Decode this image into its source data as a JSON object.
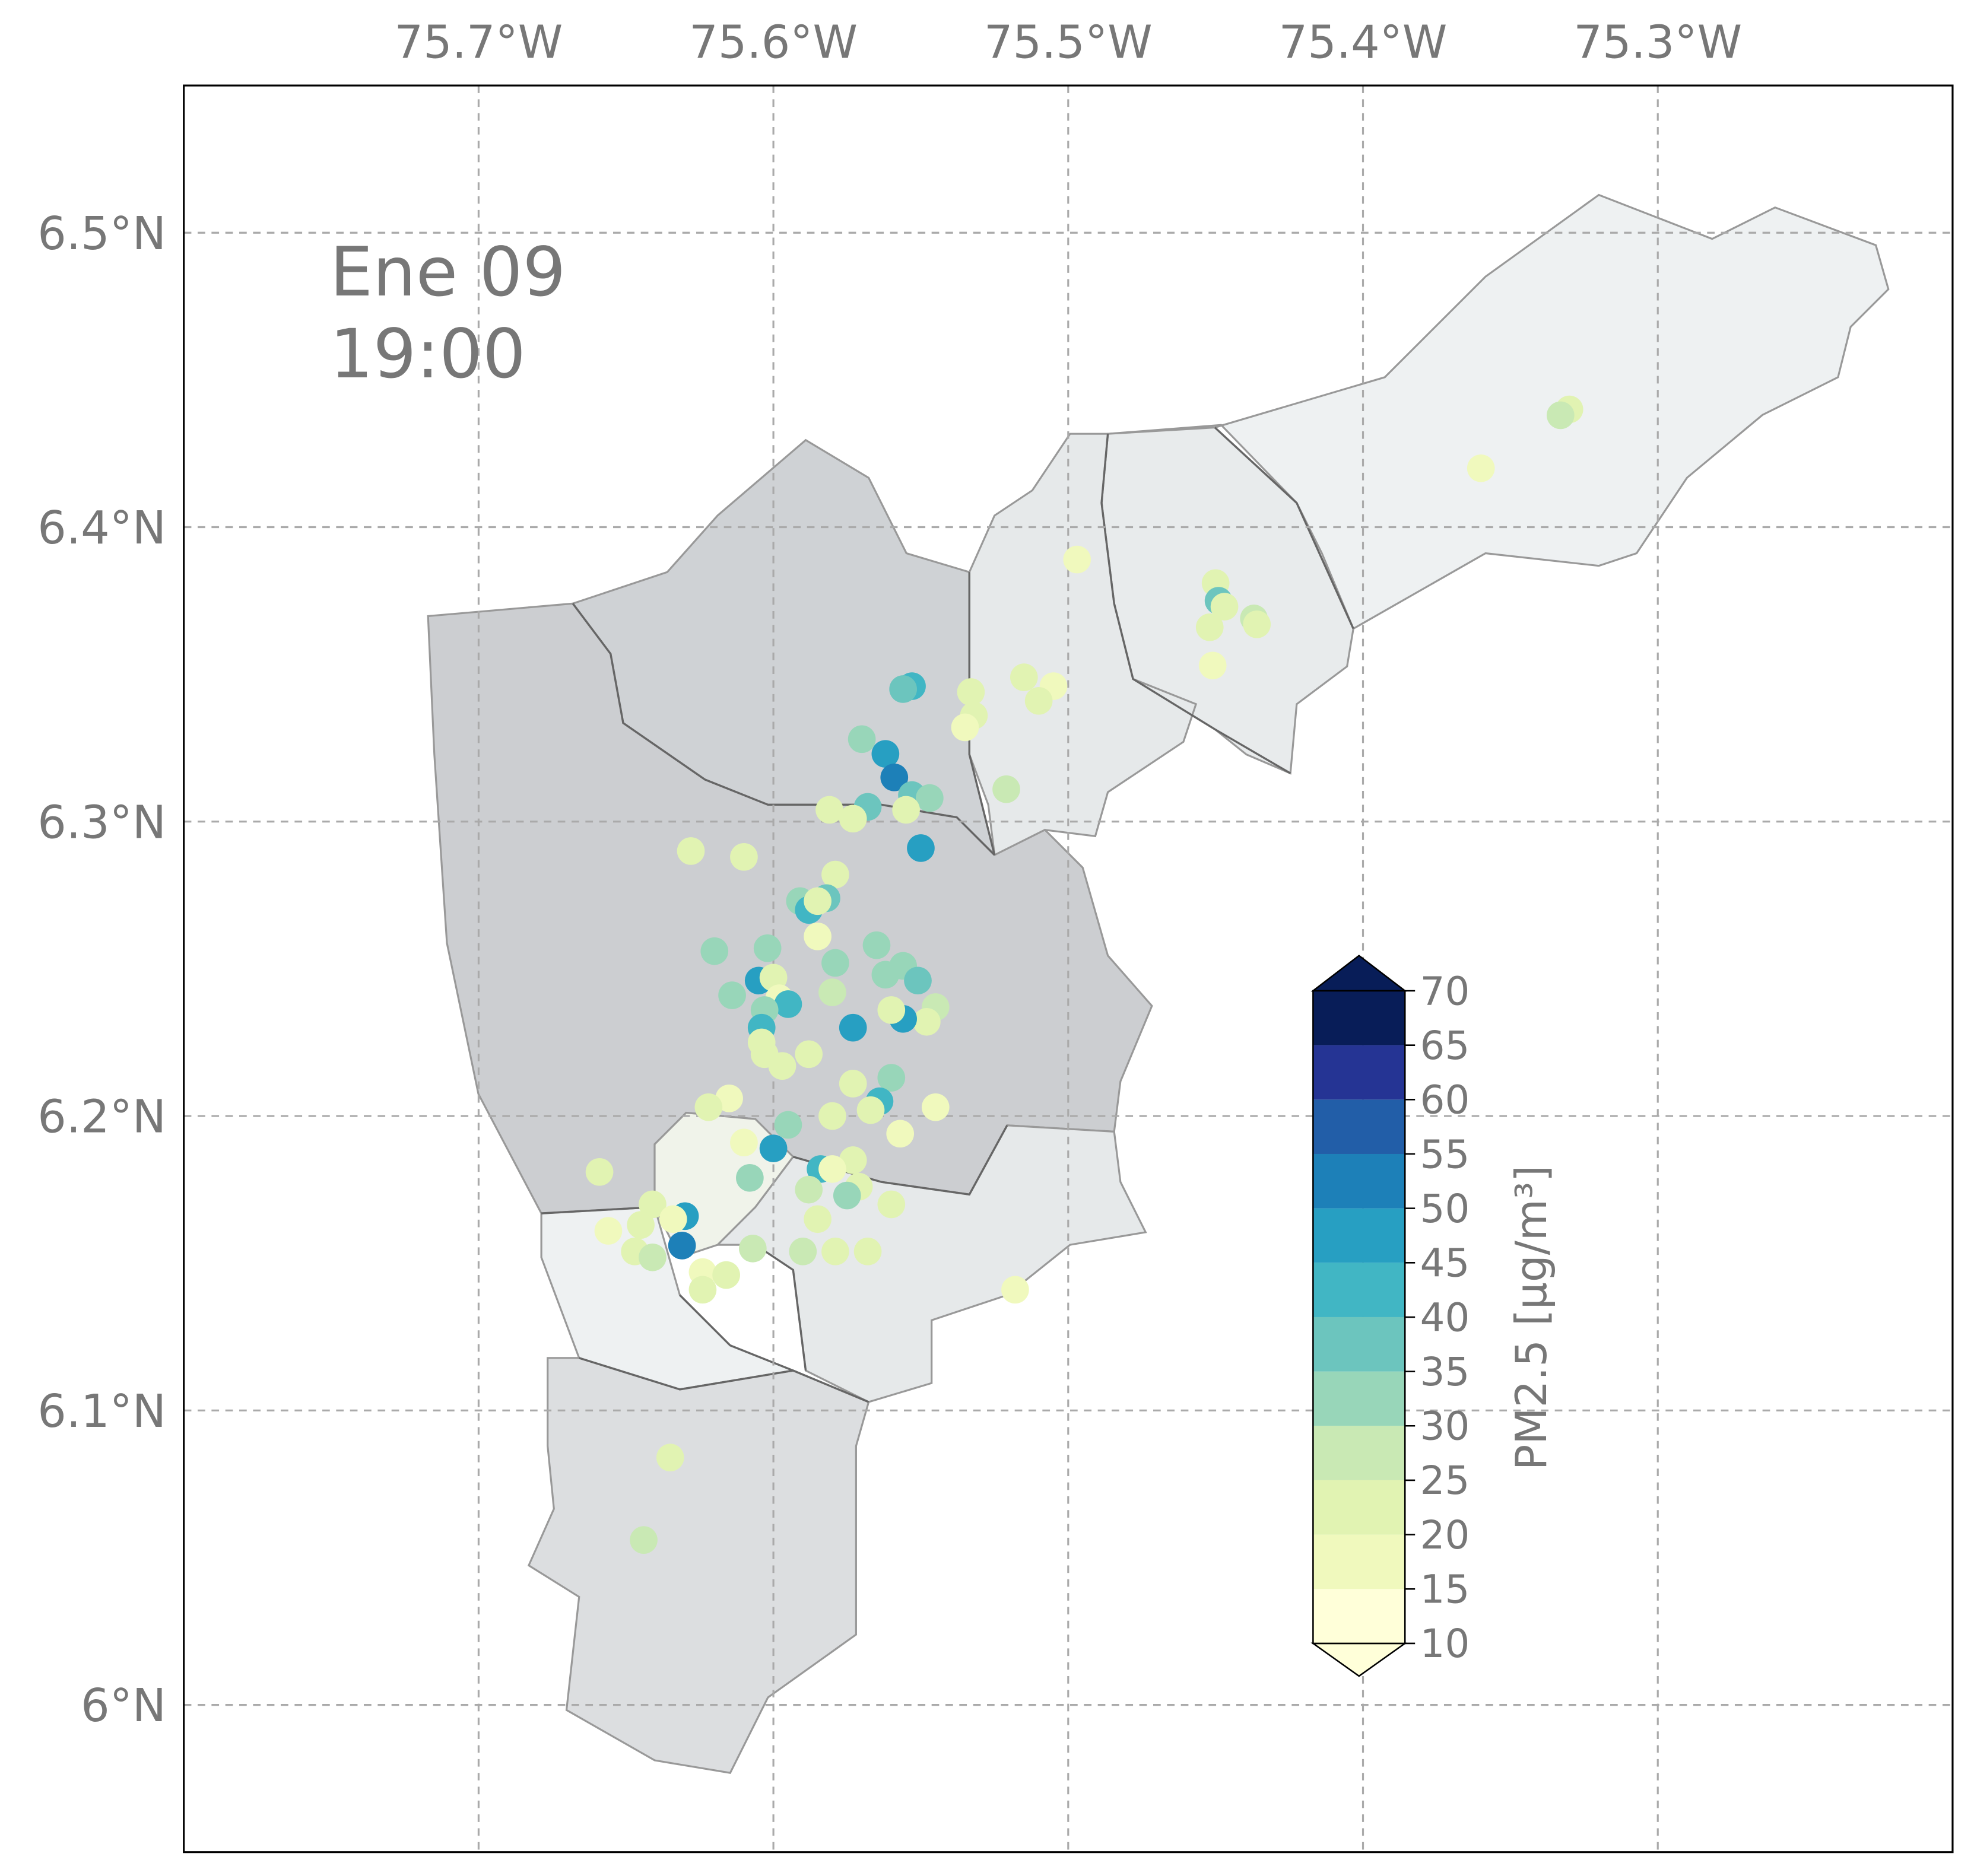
{
  "chart_data": {
    "type": "scatter",
    "title": "Ene 09",
    "subtitle": "19:00",
    "x": [
      -75.33,
      -75.333,
      -75.36,
      -75.497,
      -75.45,
      -75.449,
      -75.447,
      -75.437,
      -75.436,
      -75.452,
      -75.451,
      -75.553,
      -75.556,
      -75.533,
      -75.515,
      -75.505,
      -75.51,
      -75.532,
      -75.535,
      -75.57,
      -75.562,
      -75.559,
      -75.553,
      -75.547,
      -75.521,
      -75.555,
      -75.568,
      -75.581,
      -75.573,
      -75.55,
      -75.628,
      -75.61,
      -75.579,
      -75.591,
      -75.588,
      -75.582,
      -75.585,
      -75.585,
      -75.602,
      -75.62,
      -75.565,
      -75.579,
      -75.556,
      -75.562,
      -75.551,
      -75.605,
      -75.6,
      -75.614,
      -75.58,
      -75.598,
      -75.595,
      -75.545,
      -75.548,
      -75.556,
      -75.56,
      -75.603,
      -75.604,
      -75.573,
      -75.604,
      -75.603,
      -75.588,
      -75.597,
      -75.56,
      -75.573,
      -75.564,
      -75.615,
      -75.622,
      -75.545,
      -75.567,
      -75.58,
      -75.595,
      -75.557,
      -75.61,
      -75.6,
      -75.573,
      -75.659,
      -75.584,
      -75.58,
      -75.608,
      -75.571,
      -75.588,
      -75.575,
      -75.56,
      -75.641,
      -75.63,
      -75.634,
      -75.585,
      -75.645,
      -75.656,
      -75.59,
      -75.631,
      -75.647,
      -75.579,
      -75.568,
      -75.607,
      -75.641,
      -75.624,
      -75.616,
      -75.624,
      -75.518,
      -75.635,
      -75.644
    ],
    "y": [
      6.44,
      6.438,
      6.42,
      6.389,
      6.381,
      6.375,
      6.373,
      6.369,
      6.367,
      6.366,
      6.353,
      6.346,
      6.345,
      6.344,
      6.349,
      6.346,
      6.341,
      6.336,
      6.332,
      6.328,
      6.323,
      6.315,
      6.309,
      6.308,
      6.311,
      6.304,
      6.305,
      6.304,
      6.301,
      6.291,
      6.29,
      6.288,
      6.282,
      6.273,
      6.27,
      6.274,
      6.273,
      6.261,
      6.257,
      6.256,
      6.258,
      6.252,
      6.251,
      6.248,
      6.246,
      6.246,
      6.247,
      6.241,
      6.242,
      6.24,
      6.238,
      6.237,
      6.232,
      6.233,
      6.236,
      6.236,
      6.23,
      6.23,
      6.225,
      6.221,
      6.221,
      6.217,
      6.213,
      6.211,
      6.205,
      6.206,
      6.203,
      6.203,
      6.202,
      6.2,
      6.197,
      6.194,
      6.191,
      6.189,
      6.185,
      6.181,
      6.182,
      6.182,
      6.179,
      6.176,
      6.175,
      6.173,
      6.17,
      6.17,
      6.166,
      6.165,
      6.165,
      6.163,
      6.161,
      6.154,
      6.156,
      6.154,
      6.154,
      6.154,
      6.155,
      6.152,
      6.147,
      6.146,
      6.141,
      6.141,
      6.084,
      6.056
    ],
    "values": [
      22,
      25,
      15,
      15,
      20,
      38,
      22,
      25,
      22,
      20,
      15,
      43,
      38,
      22,
      20,
      15,
      22,
      20,
      15,
      30,
      45,
      52,
      38,
      33,
      27,
      20,
      35,
      22,
      20,
      45,
      20,
      20,
      22,
      33,
      43,
      35,
      20,
      15,
      33,
      33,
      30,
      33,
      33,
      33,
      35,
      45,
      20,
      30,
      25,
      15,
      40,
      27,
      22,
      45,
      20,
      30,
      43,
      45,
      22,
      20,
      22,
      20,
      30,
      20,
      40,
      15,
      20,
      15,
      22,
      20,
      30,
      15,
      15,
      47,
      20,
      20,
      43,
      15,
      30,
      22,
      27,
      30,
      20,
      22,
      47,
      15,
      22,
      20,
      15,
      27,
      52,
      20,
      20,
      20,
      27,
      25,
      15,
      22,
      20,
      15,
      20,
      25
    ],
    "xlim": [
      -75.8,
      -75.2
    ],
    "ylim": [
      5.95,
      6.55
    ],
    "xticks": [
      {
        "value": -75.7,
        "label": "75.7°W"
      },
      {
        "value": -75.6,
        "label": "75.6°W"
      },
      {
        "value": -75.5,
        "label": "75.5°W"
      },
      {
        "value": -75.4,
        "label": "75.4°W"
      },
      {
        "value": -75.3,
        "label": "75.3°W"
      }
    ],
    "yticks": [
      {
        "value": 6.0,
        "label": "6°N"
      },
      {
        "value": 6.1,
        "label": "6.1°N"
      },
      {
        "value": 6.2,
        "label": "6.2°N"
      },
      {
        "value": 6.3,
        "label": "6.3°N"
      },
      {
        "value": 6.4,
        "label": "6.4°N"
      },
      {
        "value": 6.5,
        "label": "6.5°N"
      }
    ],
    "grid": true,
    "colorbar": {
      "label": "PM2.5 [μg/m³]",
      "ticks": [
        10,
        15,
        20,
        25,
        30,
        35,
        40,
        45,
        50,
        55,
        60,
        65,
        70
      ],
      "colors": [
        "#ffffd9",
        "#f0f9bd",
        "#e1f3b2",
        "#c9e9b4",
        "#98d6b9",
        "#6cc5be",
        "#41b6c4",
        "#279fc2",
        "#1d80b8",
        "#225ea8",
        "#253494",
        "#081d58"
      ],
      "under_color": "#ffffd9",
      "over_color": "#081d58"
    }
  }
}
